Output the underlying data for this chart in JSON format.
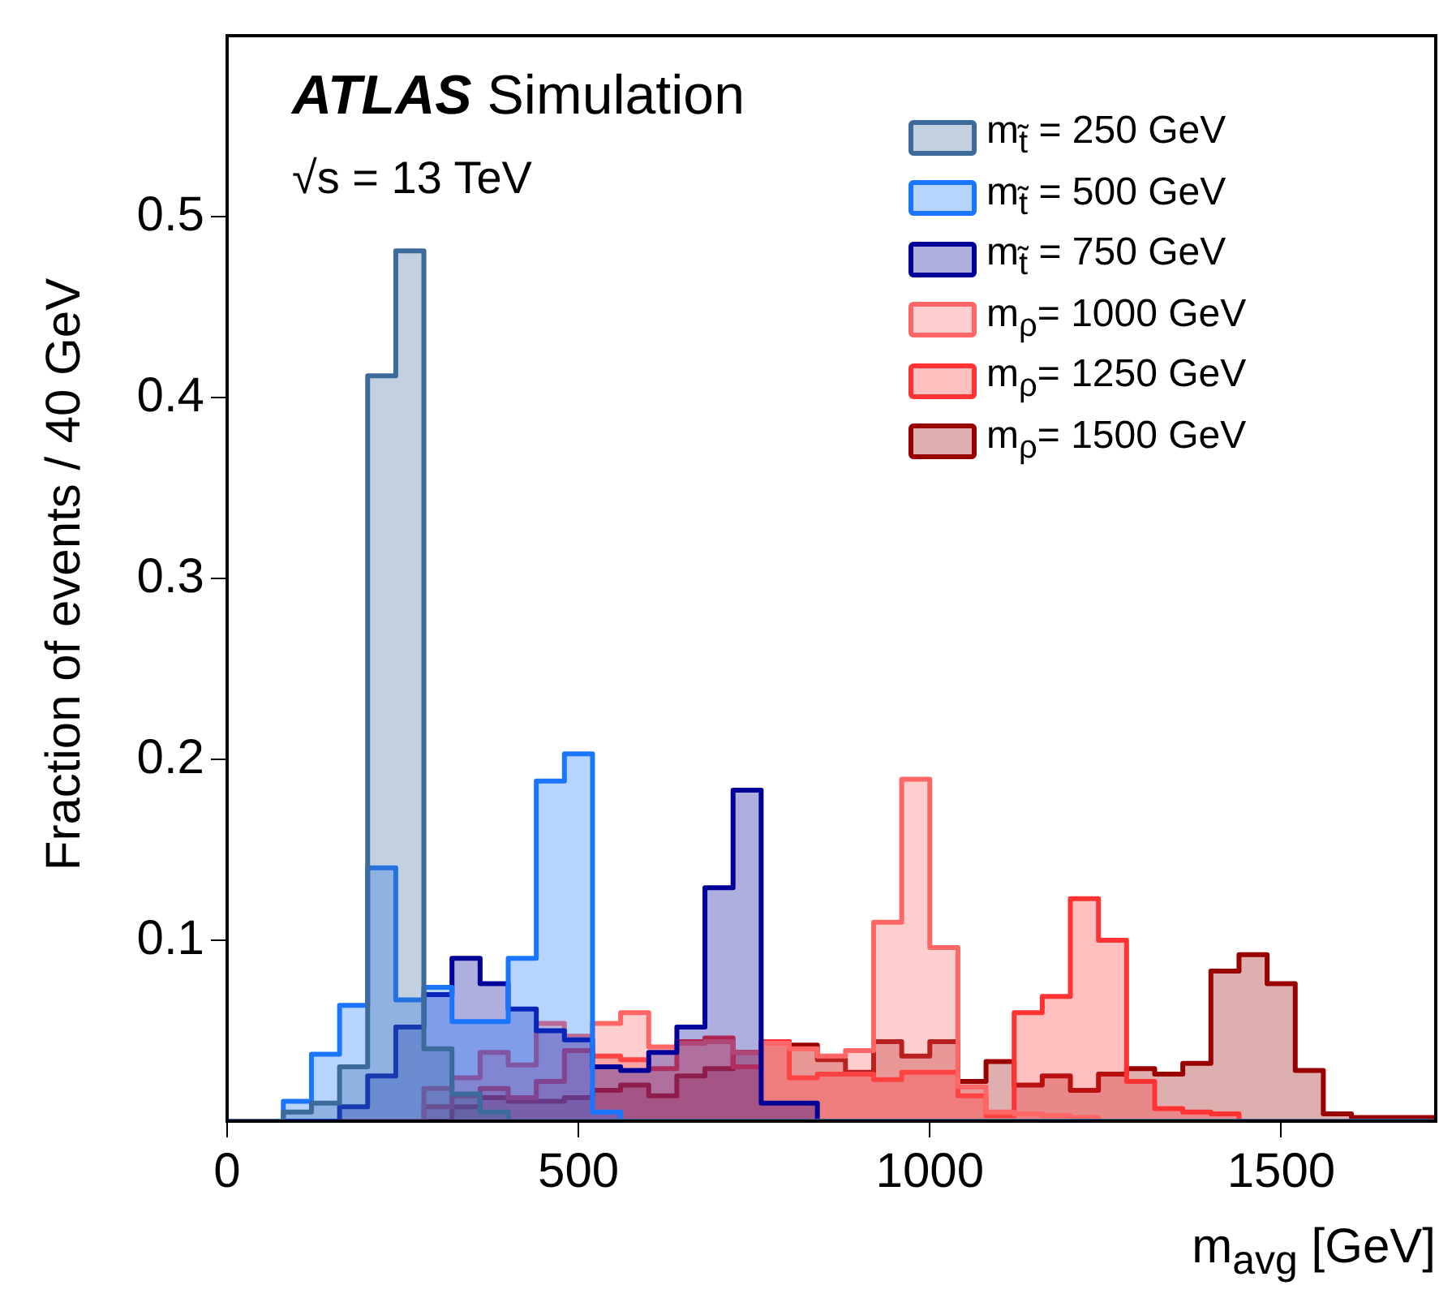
{
  "chart_data": {
    "type": "histogram",
    "xlabel": "m$_{avg}$ [GeV]",
    "ylabel": "Fraction of events / 40 GeV",
    "annotations": [
      "ATLAS Simulation",
      "√s = 13 TeV"
    ],
    "bins": [
      0,
      40,
      80,
      120,
      160,
      200,
      240,
      280,
      320,
      360,
      400,
      440,
      480,
      520,
      560,
      600,
      640,
      680,
      720,
      760,
      800,
      840,
      880,
      920,
      960,
      1000,
      1040,
      1080,
      1120,
      1160,
      1200,
      1240,
      1280,
      1320,
      1360,
      1400,
      1440,
      1480,
      1520,
      1560,
      1600,
      1640,
      1680,
      1720
    ],
    "series": [
      {
        "name": "m$_{t̃}$ = 250 GeV",
        "color": "#3b6a9b",
        "values": [
          0,
          0,
          0.005,
          0.01,
          0.03,
          0.412,
          0.481,
          0.04,
          0.015,
          0.005,
          0,
          0,
          0,
          0,
          0,
          0,
          0,
          0,
          0,
          0,
          0,
          0,
          0,
          0,
          0,
          0,
          0,
          0,
          0,
          0,
          0,
          0,
          0,
          0,
          0,
          0,
          0,
          0,
          0,
          0,
          0,
          0,
          0
        ]
      },
      {
        "name": "m$_{t̃}$ = 500 GeV",
        "color": "#1a75ff",
        "values": [
          0,
          0,
          0.011,
          0.037,
          0.064,
          0.14,
          0.067,
          0.074,
          0.055,
          0.055,
          0.09,
          0.188,
          0.203,
          0.005,
          0,
          0,
          0,
          0,
          0,
          0,
          0,
          0,
          0,
          0,
          0,
          0,
          0,
          0,
          0,
          0,
          0,
          0,
          0,
          0,
          0,
          0,
          0,
          0,
          0,
          0,
          0,
          0,
          0
        ]
      },
      {
        "name": "m$_{t̃}$ = 750 GeV",
        "color": "#000099",
        "values": [
          0,
          0,
          0,
          0,
          0.008,
          0.025,
          0.052,
          0.07,
          0.09,
          0.076,
          0.062,
          0.05,
          0.045,
          0.03,
          0.028,
          0.038,
          0.052,
          0.129,
          0.183,
          0.01,
          0.01,
          0,
          0,
          0,
          0,
          0,
          0,
          0,
          0,
          0,
          0,
          0,
          0,
          0,
          0,
          0,
          0,
          0,
          0,
          0,
          0,
          0,
          0
        ]
      },
      {
        "name": "m$_{ρ}$= 1000 GeV",
        "color": "#ff6666",
        "values": [
          0,
          0,
          0,
          0,
          0,
          0,
          0,
          0.018,
          0.024,
          0.038,
          0.031,
          0.054,
          0.047,
          0.054,
          0.06,
          0.041,
          0.043,
          0.044,
          0.038,
          0.043,
          0.04,
          0.036,
          0.039,
          0.11,
          0.189,
          0.096,
          0.019,
          0.005,
          0.004,
          0.003,
          0.002,
          0,
          0,
          0,
          0,
          0,
          0,
          0,
          0,
          0,
          0,
          0,
          0
        ]
      },
      {
        "name": "m$_{ρ}$= 1250 GeV",
        "color": "#ff3333",
        "values": [
          0,
          0,
          0,
          0,
          0,
          0,
          0,
          0.008,
          0.014,
          0.018,
          0.013,
          0.022,
          0.039,
          0.036,
          0.034,
          0.029,
          0.044,
          0.046,
          0.03,
          0.044,
          0.024,
          0.026,
          0.026,
          0.023,
          0.027,
          0.027,
          0.014,
          0.003,
          0.06,
          0.069,
          0.123,
          0.1,
          0.022,
          0.007,
          0.005,
          0.004,
          0,
          0,
          0,
          0,
          0,
          0,
          0
        ]
      },
      {
        "name": "m$_{ρ}$= 1500 GeV",
        "color": "#990000",
        "values": [
          0,
          0,
          0,
          0,
          0,
          0,
          0,
          0,
          0.008,
          0.013,
          0.011,
          0.011,
          0.013,
          0.017,
          0.02,
          0.014,
          0.025,
          0.029,
          0.038,
          0.044,
          0.042,
          0.034,
          0.027,
          0.044,
          0.036,
          0.044,
          0.022,
          0.033,
          0.02,
          0.025,
          0.017,
          0.026,
          0.029,
          0.026,
          0.032,
          0.083,
          0.092,
          0.076,
          0.028,
          0.004,
          0.002,
          0.002,
          0.002
        ]
      }
    ],
    "xlim": [
      0,
      1720
    ],
    "xticks": [
      0,
      500,
      1000,
      1500
    ],
    "ylim": [
      0,
      0.6
    ],
    "yticks": [
      0.1,
      0.2,
      0.3,
      0.4,
      0.5
    ],
    "grid": false,
    "legend": "top right"
  }
}
